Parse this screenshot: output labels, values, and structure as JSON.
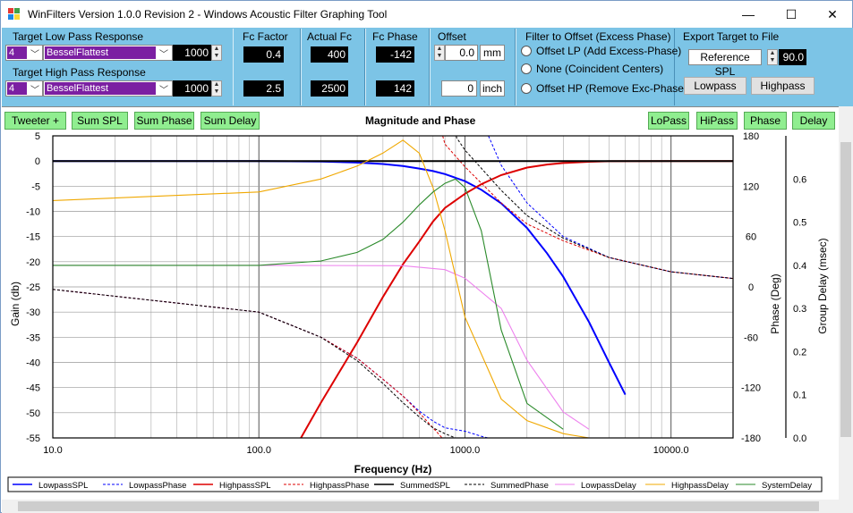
{
  "window": {
    "title": "WinFilters Version 1.0.0 Revision 2 - Windows Acoustic Filter Graphing Tool",
    "minimize_glyph": "—",
    "maximize_glyph": "☐",
    "close_glyph": "✕"
  },
  "target_lp": {
    "label": "Target Low Pass Response",
    "order": "4",
    "type": "BesselFlattest",
    "freq": "1000"
  },
  "target_hp": {
    "label": "Target High Pass Response",
    "order": "4",
    "type": "BesselFlattest",
    "freq": "1000"
  },
  "fc_factor": {
    "label": "Fc Factor",
    "lp": "0.4",
    "hp": "2.5"
  },
  "actual_fc": {
    "label": "Actual Fc",
    "lp": "400",
    "hp": "2500"
  },
  "fc_phase": {
    "label": "Fc Phase",
    "lp": "-142",
    "hp": "142"
  },
  "offset": {
    "label": "Offset",
    "mm_value": "0.0",
    "mm_unit": "mm",
    "inch_value": "0",
    "inch_unit": "inch"
  },
  "filter_offset": {
    "label": "Filter to Offset (Excess Phase)",
    "options": [
      "Offset LP (Add Excess-Phase)",
      "None (Coincident Centers)",
      "Offset HP (Remove Exc-Phase)"
    ]
  },
  "export": {
    "label": "Export Target to File",
    "ref_label": "Reference SPL",
    "ref_value": "90.0",
    "lowpass_button": "Lowpass",
    "highpass_button": "Highpass"
  },
  "plot_buttons": {
    "tweeter": "Tweeter +",
    "sum_spl": "Sum SPL",
    "sum_phase": "Sum Phase",
    "sum_delay": "Sum Delay",
    "lopass": "LoPass",
    "hipass": "HiPass",
    "phase": "Phase",
    "delay": "Delay"
  },
  "chart_data": {
    "type": "line",
    "title": "Magnitude and Phase",
    "xlabel": "Frequency (Hz)",
    "ylabel": "Gain (db)",
    "y2label": "Phase (Deg)",
    "y3label": "Group Delay (msec)",
    "xscale": "log",
    "xlim": [
      10,
      20000
    ],
    "ylim": [
      -55,
      5
    ],
    "y2lim": [
      -180,
      180
    ],
    "y3lim": [
      0,
      0.7
    ],
    "xticks": [
      "10.0",
      "100.0",
      "1000.0",
      "10000.0"
    ],
    "yticks": [
      "5",
      "0",
      "-5",
      "-10",
      "-15",
      "-20",
      "-25",
      "-30",
      "-35",
      "-40",
      "-45",
      "-50",
      "-55"
    ],
    "y2ticks": [
      "180",
      "120",
      "60",
      "0",
      "-60",
      "-120",
      "-180"
    ],
    "y3ticks": [
      "0.6",
      "0.5",
      "0.4",
      "0.3",
      "0.2",
      "0.1",
      "0.0"
    ],
    "grid": true,
    "legend_position": "bottom",
    "series": [
      {
        "name": "LowpassSPL",
        "color": "#0000ff",
        "style": "solid",
        "axis": "gain",
        "x": [
          10,
          100,
          200,
          300,
          400,
          500,
          600,
          700,
          800,
          1000,
          1200,
          1500,
          2000,
          2500,
          3000,
          4000,
          5000,
          6000
        ],
        "y": [
          0,
          -0.03,
          -0.1,
          -0.3,
          -0.6,
          -1.0,
          -1.5,
          -2.0,
          -2.6,
          -4.0,
          -5.7,
          -8.4,
          -13.3,
          -18.3,
          -23.0,
          -32.0,
          -40.0,
          -46.4
        ]
      },
      {
        "name": "LowpassPhase",
        "color": "#0000ff",
        "style": "dashed",
        "axis": "phase",
        "x": [
          10,
          100,
          200,
          300,
          400,
          500,
          600,
          700,
          800,
          1000,
          1200,
          1290,
          1300,
          1500,
          2000,
          3000,
          5000,
          10000,
          20000
        ],
        "y": [
          -3,
          -30,
          -60,
          -85,
          -110,
          -130,
          -148,
          -160,
          -168,
          -172,
          -178,
          -180,
          180,
          145,
          100,
          60,
          35,
          18,
          10
        ]
      },
      {
        "name": "HighpassSPL",
        "color": "#dd0000",
        "style": "solid",
        "axis": "gain",
        "x": [
          160,
          200,
          300,
          400,
          500,
          600,
          700,
          800,
          1000,
          1200,
          1500,
          2000,
          2500,
          3000,
          4000,
          5000,
          10000,
          20000
        ],
        "y": [
          -55,
          -48,
          -36,
          -27,
          -20.5,
          -16,
          -12,
          -9.3,
          -6.5,
          -4.6,
          -2.8,
          -1.3,
          -0.7,
          -0.4,
          -0.15,
          -0.05,
          0,
          0
        ]
      },
      {
        "name": "HighpassPhase",
        "color": "#dd0000",
        "style": "dashed",
        "axis": "phase",
        "x": [
          10,
          100,
          200,
          300,
          400,
          500,
          600,
          700,
          775,
          780,
          800,
          1000,
          1500,
          2000,
          3000,
          5000,
          10000,
          20000
        ],
        "y": [
          -3,
          -30,
          -60,
          -85,
          -110,
          -130,
          -150,
          -168,
          -180,
          180,
          170,
          143,
          100,
          75,
          55,
          35,
          18,
          10
        ]
      },
      {
        "name": "SummedSPL",
        "color": "#000000",
        "style": "solid",
        "axis": "gain",
        "x": [
          10,
          100,
          1000,
          10000,
          20000
        ],
        "y": [
          0,
          0,
          0,
          0,
          0
        ]
      },
      {
        "name": "SummedPhase",
        "color": "#000000",
        "style": "dashed",
        "axis": "phase",
        "x": [
          10,
          100,
          200,
          300,
          400,
          500,
          600,
          700,
          800,
          900,
          910,
          1000,
          1500,
          2000,
          3000,
          5000,
          10000,
          20000
        ],
        "y": [
          -3,
          -30,
          -60,
          -88,
          -115,
          -138,
          -155,
          -168,
          -175,
          -180,
          178,
          163,
          115,
          85,
          58,
          35,
          18,
          10
        ]
      },
      {
        "name": "LowpassDelay",
        "color": "#ee82ee",
        "style": "solid",
        "axis": "delay",
        "x": [
          10,
          100,
          500,
          800,
          1000,
          1500,
          2000,
          3000,
          4000
        ],
        "y": [
          0.4,
          0.4,
          0.399,
          0.39,
          0.37,
          0.3,
          0.18,
          0.06,
          0.02
        ]
      },
      {
        "name": "HighpassDelay",
        "color": "#f0a800",
        "style": "solid",
        "axis": "delay",
        "x": [
          10,
          100,
          200,
          300,
          400,
          500,
          600,
          700,
          800,
          1000,
          1500,
          2000,
          3000,
          4000
        ],
        "y": [
          0.55,
          0.57,
          0.6,
          0.63,
          0.66,
          0.69,
          0.66,
          0.58,
          0.48,
          0.28,
          0.09,
          0.04,
          0.01,
          0.0
        ]
      },
      {
        "name": "SystemDelay",
        "color": "#2a8a2a",
        "style": "solid",
        "axis": "delay",
        "x": [
          10,
          100,
          200,
          300,
          400,
          500,
          600,
          700,
          800,
          900,
          1000,
          1200,
          1500,
          2000,
          3000
        ],
        "y": [
          0.4,
          0.4,
          0.41,
          0.43,
          0.46,
          0.5,
          0.54,
          0.57,
          0.59,
          0.6,
          0.58,
          0.48,
          0.25,
          0.08,
          0.02
        ]
      }
    ]
  }
}
